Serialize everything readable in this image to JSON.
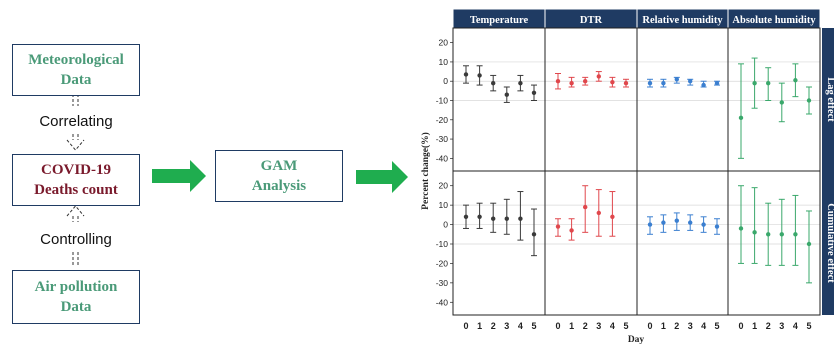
{
  "flow": {
    "met_line1": "Meteorological",
    "met_line2": "Data",
    "correlating": "Correlating",
    "covid_line1": "COVID-19",
    "covid_line2": "Deaths count",
    "controlling": "Controlling",
    "air_line1": "Air pollution",
    "air_line2": "Data",
    "gam_line1": "GAM",
    "gam_line2": "Analysis"
  },
  "colors": {
    "arrow_green": "#1fad4f",
    "box_border": "#1f3b63",
    "panel_header": "#1f3b63",
    "temperature": "#3a3a3a",
    "dtr": "#e0474c",
    "relative_humidity": "#3b7fd0",
    "absolute_humidity": "#3aa86b"
  },
  "chart_data": {
    "type": "errorbar",
    "ylabel": "Percent change(%)",
    "xlabel": "Day",
    "ylim": [
      -45,
      25
    ],
    "yticks": [
      20,
      10,
      0,
      -10,
      -20,
      -30,
      -40
    ],
    "x": [
      0,
      1,
      2,
      3,
      4,
      5
    ],
    "columns": [
      "Temperature",
      "DTR",
      "Relative humidity",
      "Absolute humidity"
    ],
    "rows": [
      "Lag effect",
      "Cumulative effect"
    ],
    "panels": [
      {
        "row": 0,
        "col": 0,
        "estimate": [
          3.5,
          3,
          -1,
          -7,
          -1,
          -6
        ],
        "lower": [
          -1,
          -2,
          -5,
          -11,
          -5,
          -10
        ],
        "upper": [
          8,
          8,
          3,
          -3,
          3,
          -2
        ]
      },
      {
        "row": 0,
        "col": 1,
        "estimate": [
          0,
          -1,
          0,
          2.5,
          -0.5,
          -1
        ],
        "lower": [
          -4,
          -3,
          -2,
          0,
          -3,
          -3
        ],
        "upper": [
          4,
          2,
          2,
          5,
          2,
          1
        ]
      },
      {
        "row": 0,
        "col": 2,
        "estimate": [
          -1,
          -1,
          1,
          0,
          -2,
          -1
        ],
        "lower": [
          -3,
          -3,
          -1,
          -2,
          -3,
          -2
        ],
        "upper": [
          1,
          1,
          2,
          1,
          0,
          0
        ]
      },
      {
        "row": 0,
        "col": 3,
        "estimate": [
          -19,
          -1,
          -1,
          -11,
          0.5,
          -10
        ],
        "lower": [
          -40,
          -14,
          -10,
          -21,
          -8,
          -17
        ],
        "upper": [
          9,
          12,
          7,
          -1,
          9,
          -3
        ]
      },
      {
        "row": 1,
        "col": 0,
        "estimate": [
          4,
          4,
          3,
          3,
          3,
          -5
        ],
        "lower": [
          -2,
          -2,
          -4,
          -5,
          -8,
          -16
        ],
        "upper": [
          10,
          11,
          11,
          13,
          17,
          8
        ]
      },
      {
        "row": 1,
        "col": 1,
        "estimate": [
          -1,
          -3,
          9,
          6,
          4,
          null
        ],
        "lower": [
          -6,
          -8,
          -4,
          -6,
          -6,
          null
        ],
        "upper": [
          3,
          3,
          20,
          18,
          17,
          null
        ]
      },
      {
        "row": 1,
        "col": 2,
        "estimate": [
          0,
          1,
          2,
          1,
          0,
          -1
        ],
        "lower": [
          -5,
          -4,
          -3,
          -3,
          -4,
          -5
        ],
        "upper": [
          4,
          5,
          6,
          5,
          4,
          3
        ]
      },
      {
        "row": 1,
        "col": 3,
        "estimate": [
          -2,
          -4,
          -5,
          -5,
          -5,
          -10
        ],
        "lower": [
          -20,
          -20,
          -21,
          -21,
          -21,
          -30
        ],
        "upper": [
          20,
          19,
          11,
          13,
          15,
          7
        ]
      }
    ]
  }
}
